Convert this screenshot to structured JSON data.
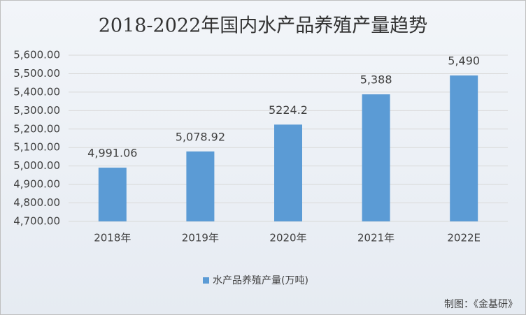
{
  "chart_data": {
    "type": "bar",
    "title": "2018-2022年国内水产品养殖产量趋势",
    "categories": [
      "2018年",
      "2019年",
      "2020年",
      "2021年",
      "2022E"
    ],
    "series": [
      {
        "name": "水产品养殖产量(万吨)",
        "color": "#5b9bd5",
        "values": [
          4991.06,
          5078.92,
          5224.2,
          5388,
          5490
        ],
        "value_labels": [
          "4,991.06",
          "5,078.92",
          "5224.2",
          "5,388",
          "5,490"
        ]
      }
    ],
    "ylim": [
      4700,
      5600
    ],
    "yticks": [
      {
        "value": 4700,
        "label": "4,700.00"
      },
      {
        "value": 4800,
        "label": "4,800.00"
      },
      {
        "value": 4900,
        "label": "4,900.00"
      },
      {
        "value": 5000,
        "label": "5,000.00"
      },
      {
        "value": 5100,
        "label": "5,100.00"
      },
      {
        "value": 5200,
        "label": "5,200.00"
      },
      {
        "value": 5300,
        "label": "5,300.00"
      },
      {
        "value": 5400,
        "label": "5,400.00"
      },
      {
        "value": 5500,
        "label": "5,500.00"
      },
      {
        "value": 5600,
        "label": "5,600.00"
      }
    ],
    "grid": true,
    "legend": "bottom",
    "source": "制图：《金基研》"
  }
}
